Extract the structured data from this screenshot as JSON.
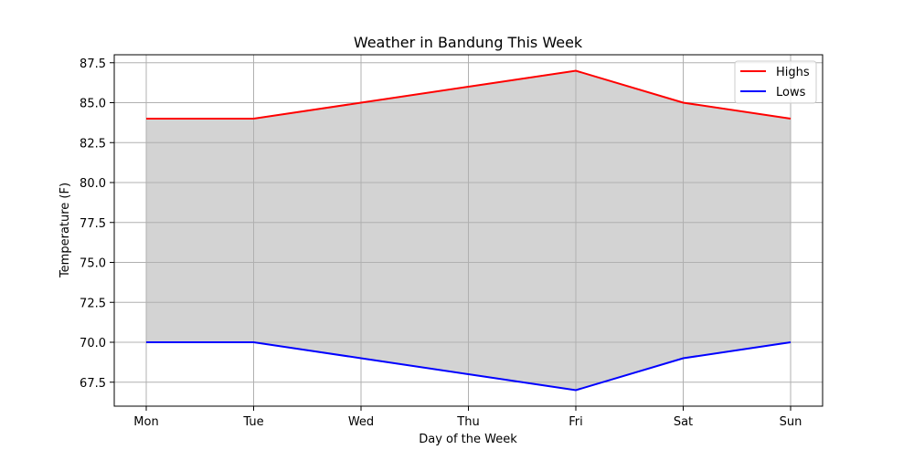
{
  "chart_data": {
    "type": "area",
    "title": "Weather in Bandung This Week",
    "xlabel": "Day of the Week",
    "ylabel": "Temperature (F)",
    "categories": [
      "Mon",
      "Tue",
      "Wed",
      "Thu",
      "Fri",
      "Sat",
      "Sun"
    ],
    "series": [
      {
        "name": "Highs",
        "values": [
          84,
          84,
          85,
          86,
          87,
          85,
          84
        ],
        "color": "#ff0000"
      },
      {
        "name": "Lows",
        "values": [
          70,
          70,
          69,
          68,
          67,
          69,
          70
        ],
        "color": "#0000ff"
      }
    ],
    "fill_color": "#d3d3d3",
    "ylim": [
      66,
      88
    ],
    "yticks": [
      "67.5",
      "70.0",
      "72.5",
      "75.0",
      "77.5",
      "80.0",
      "82.5",
      "85.0",
      "87.5"
    ],
    "grid": true,
    "legend_position": "top-right"
  }
}
